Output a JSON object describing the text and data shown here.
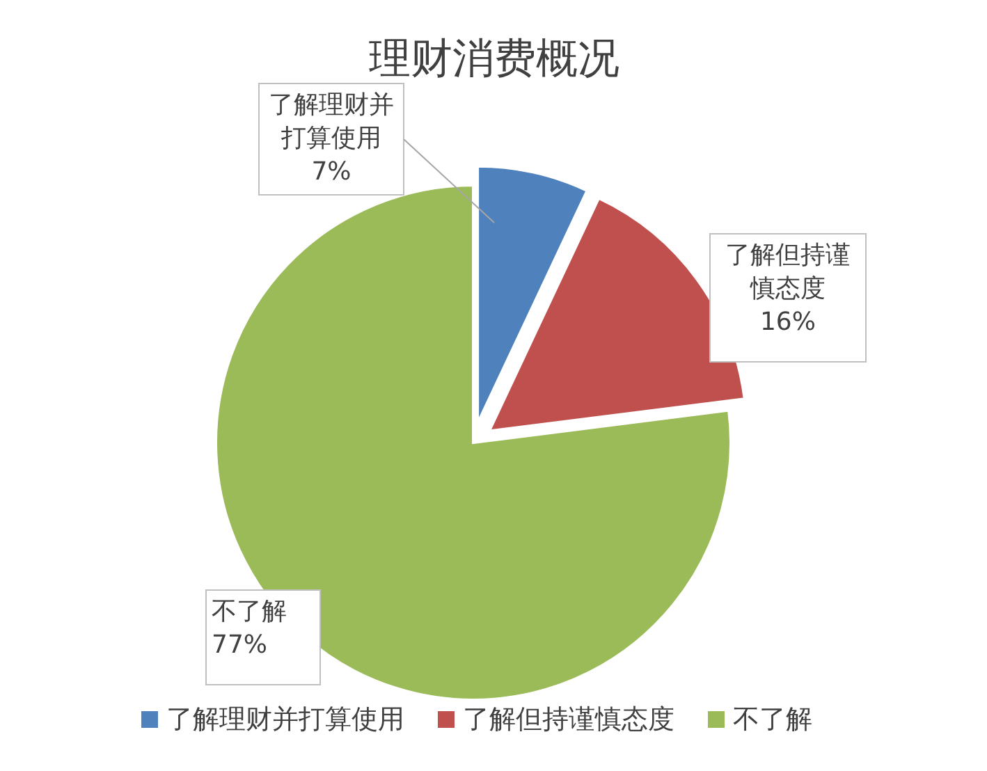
{
  "chart_data": {
    "type": "pie",
    "title": "理财消费概况",
    "categories": [
      "了解理财并打算使用",
      "了解但持谨慎态度",
      "不了解"
    ],
    "values": [
      7,
      16,
      77
    ],
    "value_labels": [
      "7%",
      "16%",
      "77%"
    ],
    "colors": [
      "#4f81bd",
      "#c0504d",
      "#9bbb59"
    ],
    "legend": "bottom"
  }
}
